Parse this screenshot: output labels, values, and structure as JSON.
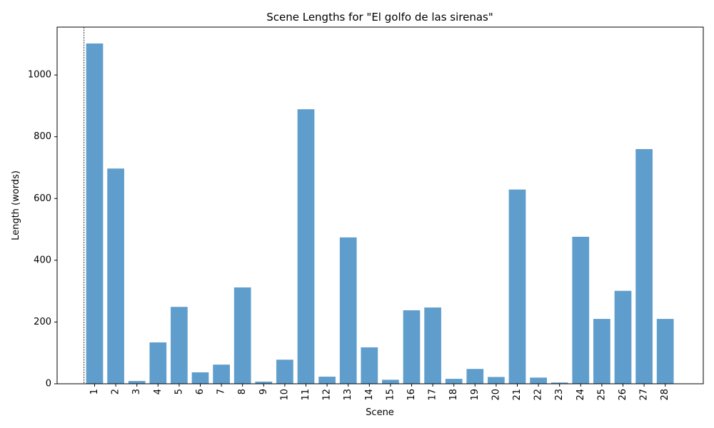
{
  "chart_data": {
    "type": "bar",
    "title": "Scene Lengths for \"El golfo de las sirenas\"",
    "xlabel": "Scene",
    "ylabel": "Length (words)",
    "categories": [
      "1",
      "2",
      "3",
      "4",
      "5",
      "6",
      "7",
      "8",
      "9",
      "10",
      "11",
      "12",
      "13",
      "14",
      "15",
      "16",
      "17",
      "18",
      "19",
      "20",
      "21",
      "22",
      "23",
      "24",
      "25",
      "26",
      "27",
      "28"
    ],
    "values": [
      1102,
      697,
      9,
      134,
      249,
      37,
      62,
      312,
      7,
      78,
      889,
      23,
      474,
      118,
      13,
      238,
      247,
      16,
      48,
      22,
      629,
      20,
      4,
      476,
      210,
      301,
      760,
      210
    ],
    "ylim": [
      0,
      1155
    ],
    "yticks": [
      0,
      200,
      400,
      600,
      800,
      1000
    ],
    "bar_color": "#5f9ecc",
    "grid": false,
    "legend": "none",
    "reference_line": {
      "position": "before-first-bar",
      "style": "dashed",
      "color": "#000000"
    }
  }
}
